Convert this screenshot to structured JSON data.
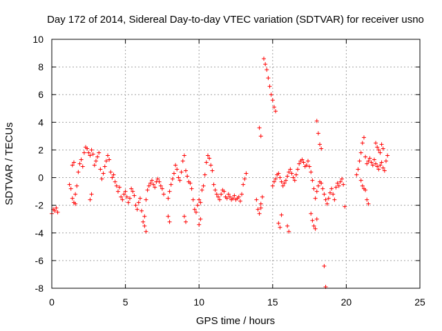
{
  "chart_data": {
    "type": "scatter",
    "title": "Day 172 of 2014, Sidereal Day-to-day VTEC variation (SDTVAR) for receiver usno",
    "xlabel": "GPS time / hours",
    "ylabel": "SDTVAR / TECUs",
    "xlim": [
      0,
      25
    ],
    "ylim": [
      -8,
      10
    ],
    "xticks": [
      "0",
      "5",
      "10",
      "15",
      "20",
      "25"
    ],
    "yticks": [
      "-8",
      "-6",
      "-4",
      "-2",
      "0",
      "2",
      "4",
      "6",
      "8",
      "10"
    ],
    "grid": true,
    "marker": "+",
    "color": "#ff0000",
    "series": [
      {
        "name": "SDTVAR",
        "x": [
          0.0,
          0.1,
          0.2,
          0.3,
          0.4,
          1.2,
          1.3,
          1.4,
          1.5,
          1.6,
          1.7,
          1.8,
          1.9,
          2.0,
          2.1,
          2.2,
          2.3,
          2.4,
          2.5,
          2.6,
          2.7,
          2.8,
          2.9,
          3.0,
          3.1,
          3.2,
          3.3,
          3.4,
          3.5,
          3.6,
          3.7,
          3.8,
          3.9,
          4.0,
          4.1,
          4.2,
          4.3,
          4.4,
          4.5,
          4.6,
          4.7,
          4.8,
          4.9,
          5.0,
          5.1,
          5.2,
          5.3,
          5.4,
          5.5,
          5.6,
          5.7,
          5.8,
          5.9,
          6.0,
          6.1,
          6.2,
          6.3,
          6.4,
          6.5,
          6.6,
          6.7,
          6.8,
          6.9,
          7.0,
          7.1,
          7.2,
          7.3,
          7.4,
          7.5,
          7.6,
          7.9,
          8.0,
          8.1,
          8.2,
          8.3,
          8.4,
          8.5,
          8.6,
          8.7,
          8.8,
          8.9,
          9.0,
          9.1,
          9.2,
          9.3,
          9.4,
          9.5,
          9.6,
          9.7,
          9.8,
          9.9,
          10.0,
          10.1,
          10.2,
          10.3,
          10.4,
          10.5,
          10.6,
          10.7,
          10.8,
          10.9,
          11.0,
          11.1,
          11.2,
          11.3,
          11.4,
          11.5,
          11.6,
          11.7,
          11.8,
          11.9,
          12.0,
          12.1,
          12.2,
          12.3,
          12.4,
          12.5,
          12.6,
          12.7,
          12.8,
          12.9,
          13.0,
          13.1,
          13.2,
          13.9,
          14.0,
          14.1,
          14.2,
          14.3,
          14.4,
          14.5,
          14.6,
          14.7,
          14.8,
          14.9,
          15.0,
          15.1,
          15.2,
          15.0,
          15.1,
          15.2,
          15.3,
          15.4,
          15.5,
          15.6,
          15.7,
          15.8,
          15.9,
          16.0,
          16.1,
          16.2,
          16.3,
          16.4,
          16.5,
          16.6,
          16.7,
          16.8,
          16.9,
          17.0,
          17.1,
          17.2,
          17.3,
          17.4,
          17.5,
          17.6,
          17.7,
          17.8,
          17.9,
          18.0,
          18.1,
          18.2,
          18.3,
          18.4,
          18.5,
          18.6,
          18.7,
          18.8,
          18.9,
          19.0,
          19.1,
          19.2,
          19.3,
          19.4,
          19.5,
          19.6,
          19.7,
          19.8,
          17.6,
          17.7,
          17.8,
          17.9,
          18.0,
          18.0,
          18.1,
          18.2,
          18.3,
          15.4,
          15.5,
          15.6,
          20.7,
          20.8,
          20.9,
          21.0,
          21.1,
          21.2,
          21.3,
          21.4,
          21.5,
          21.6,
          21.7,
          21.8,
          21.9,
          22.0,
          22.1,
          22.2,
          22.3,
          22.4,
          22.5,
          22.6,
          22.7,
          22.8,
          21.0,
          21.1,
          21.2,
          21.3,
          21.4,
          21.5,
          22.0,
          22.1,
          22.2,
          22.3,
          22.4,
          22.5,
          1.4,
          1.5,
          1.6,
          2.6,
          2.7,
          6.3,
          6.4,
          7.9,
          8.0,
          9.0,
          9.1,
          10.0,
          10.1,
          14.1,
          14.2,
          14.2,
          16.0,
          16.1,
          18.5,
          18.6,
          19.9
        ],
        "y": [
          -2.6,
          -2.3,
          -2.4,
          -2.2,
          -2.5,
          -0.5,
          -0.8,
          -1.5,
          -1.8,
          -1.2,
          -0.6,
          0.4,
          1.0,
          1.3,
          0.8,
          1.8,
          2.2,
          2.1,
          1.8,
          1.6,
          2.0,
          1.7,
          0.9,
          1.2,
          1.5,
          1.8,
          0.6,
          -0.1,
          0.3,
          0.8,
          1.2,
          1.6,
          1.3,
          0.4,
          0.0,
          0.2,
          -0.3,
          -0.6,
          -1.0,
          -0.7,
          -1.4,
          -1.6,
          -1.2,
          -1.0,
          -1.4,
          -1.8,
          -1.5,
          -0.8,
          -1.0,
          -1.3,
          -2.0,
          -2.3,
          -1.8,
          -1.5,
          -2.4,
          -3.2,
          -2.8,
          -1.6,
          -0.9,
          -0.6,
          -0.4,
          -0.2,
          -0.5,
          -0.7,
          -0.3,
          -0.1,
          -0.3,
          -0.6,
          -0.8,
          -1.2,
          -1.5,
          -1.0,
          -0.5,
          -0.1,
          0.3,
          0.9,
          0.6,
          0.0,
          -0.2,
          0.4,
          1.2,
          1.6,
          0.5,
          0.1,
          -0.3,
          -0.4,
          -0.8,
          -1.6,
          -2.3,
          -2.5,
          -2.0,
          -1.6,
          -1.8,
          -0.9,
          -0.6,
          0.2,
          1.1,
          1.6,
          1.4,
          0.9,
          0.5,
          -0.5,
          -0.9,
          -1.2,
          -1.4,
          -1.6,
          -1.2,
          -0.9,
          -1.0,
          -1.4,
          -1.5,
          -1.2,
          -1.4,
          -1.6,
          -1.5,
          -1.3,
          -1.6,
          -1.5,
          -1.4,
          -1.7,
          -1.2,
          -0.5,
          -0.1,
          0.3,
          -1.6,
          -2.3,
          -2.6,
          -1.9,
          -1.4,
          8.6,
          8.2,
          7.8,
          7.2,
          6.6,
          6.0,
          5.6,
          5.1,
          4.8,
          -0.6,
          -0.3,
          -0.1,
          0.2,
          0.3,
          0.0,
          -0.3,
          -0.6,
          -0.4,
          -0.2,
          0.1,
          0.4,
          0.6,
          0.3,
          0.0,
          -0.2,
          0.2,
          0.6,
          1.0,
          1.2,
          1.3,
          1.1,
          0.8,
          0.9,
          1.2,
          0.8,
          0.4,
          -0.2,
          -0.8,
          -1.5,
          -1.0,
          -0.6,
          -0.3,
          -0.4,
          -0.8,
          -1.2,
          -1.6,
          -1.9,
          -1.5,
          -1.1,
          -0.8,
          -1.2,
          -1.6,
          -0.7,
          -0.4,
          -0.6,
          -0.3,
          -0.1,
          -0.5,
          -2.6,
          -3.1,
          -3.5,
          -3.7,
          -3.0,
          4.1,
          3.2,
          2.4,
          2.1,
          -3.3,
          -3.6,
          -2.7,
          0.2,
          0.6,
          1.2,
          1.8,
          2.5,
          2.9,
          1.5,
          1.0,
          1.2,
          1.4,
          1.1,
          0.9,
          1.3,
          1.0,
          0.8,
          0.6,
          0.9,
          1.1,
          0.7,
          0.5,
          1.2,
          1.6,
          -0.2,
          -0.6,
          -0.8,
          -0.9,
          -1.6,
          -1.9,
          2.5,
          2.2,
          2.0,
          1.8,
          2.4,
          2.1,
          0.9,
          1.1,
          -1.9,
          -1.6,
          -1.2,
          -3.5,
          -3.9,
          -2.8,
          -3.2,
          -2.8,
          -3.2,
          -3.4,
          -3.0,
          3.6,
          3.0,
          -2.2,
          -3.5,
          -3.9,
          -6.4,
          -7.9,
          -2.1
        ]
      }
    ]
  }
}
